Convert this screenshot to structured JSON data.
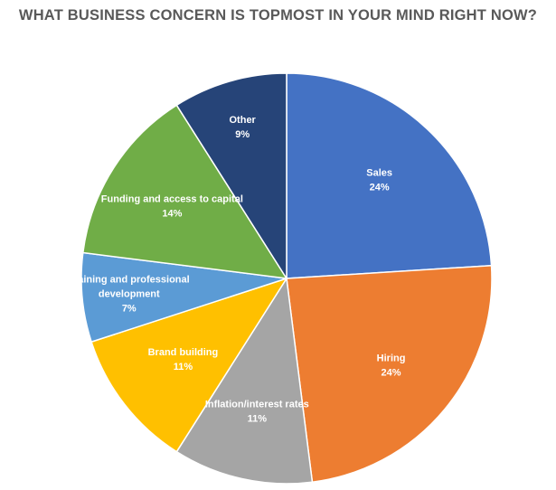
{
  "chart_data": {
    "type": "pie",
    "title": "WHAT BUSINESS CONCERN IS TOPMOST IN YOUR MIND RIGHT NOW?",
    "slices": [
      {
        "label": [
          "Sales"
        ],
        "value": 24,
        "value_label": "24%",
        "color": "#4472C4"
      },
      {
        "label": [
          "Hiring"
        ],
        "value": 24,
        "value_label": "24%",
        "color": "#ED7D31"
      },
      {
        "label": [
          "Inflation/interest rates"
        ],
        "value": 11,
        "value_label": "11%",
        "color": "#A5A5A5"
      },
      {
        "label": [
          "Brand building"
        ],
        "value": 11,
        "value_label": "11%",
        "color": "#FFC000"
      },
      {
        "label": [
          "Training and professional",
          "development"
        ],
        "value": 7,
        "value_label": "7%",
        "color": "#5B9BD5"
      },
      {
        "label": [
          "Funding and access to capital"
        ],
        "value": 14,
        "value_label": "14%",
        "color": "#70AD47"
      },
      {
        "label": [
          "Other"
        ],
        "value": 9,
        "value_label": "9%",
        "color": "#264478"
      }
    ],
    "legend": "none",
    "start_angle": "12 o'clock",
    "direction": "clockwise"
  }
}
